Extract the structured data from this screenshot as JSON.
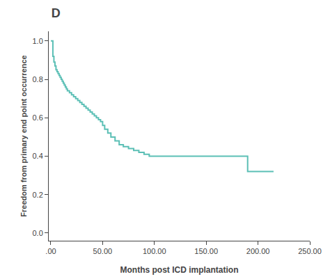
{
  "chart_data": {
    "type": "step",
    "title": "D",
    "xlabel": "Months post ICD implantation",
    "ylabel": "Freedom from primary end point occurrence",
    "color": "#5BBFB5",
    "x": [
      0,
      2,
      3,
      4,
      5,
      6,
      7,
      8,
      9,
      10,
      11,
      12,
      13,
      14,
      15,
      16,
      18,
      20,
      22,
      24,
      26,
      28,
      30,
      32,
      34,
      36,
      38,
      40,
      42,
      44,
      46,
      48,
      50,
      52,
      55,
      58,
      62,
      66,
      70,
      75,
      80,
      85,
      90,
      95,
      100,
      120,
      130,
      150,
      190,
      210,
      215
    ],
    "values": [
      1.0,
      0.92,
      0.89,
      0.87,
      0.85,
      0.84,
      0.83,
      0.82,
      0.81,
      0.8,
      0.79,
      0.78,
      0.77,
      0.76,
      0.75,
      0.74,
      0.73,
      0.72,
      0.71,
      0.7,
      0.69,
      0.68,
      0.67,
      0.66,
      0.65,
      0.64,
      0.63,
      0.62,
      0.61,
      0.6,
      0.59,
      0.58,
      0.56,
      0.54,
      0.52,
      0.5,
      0.48,
      0.46,
      0.45,
      0.44,
      0.43,
      0.42,
      0.41,
      0.4,
      0.4,
      0.4,
      0.4,
      0.4,
      0.32,
      0.32,
      0.32
    ],
    "xlim": [
      -2,
      250
    ],
    "ylim": [
      -0.04,
      1.05
    ],
    "xticks": [
      {
        "value": 0,
        "label": ".00"
      },
      {
        "value": 50,
        "label": "50.00"
      },
      {
        "value": 100,
        "label": "100.00"
      },
      {
        "value": 150,
        "label": "150.00"
      },
      {
        "value": 200,
        "label": "200.00"
      },
      {
        "value": 250,
        "label": "250.00"
      }
    ],
    "yticks": [
      {
        "value": 0,
        "label": "0.0"
      },
      0.2,
      0.4,
      0.6,
      0.8,
      {
        "value": 1,
        "label": "1.0"
      }
    ],
    "grid": false
  }
}
